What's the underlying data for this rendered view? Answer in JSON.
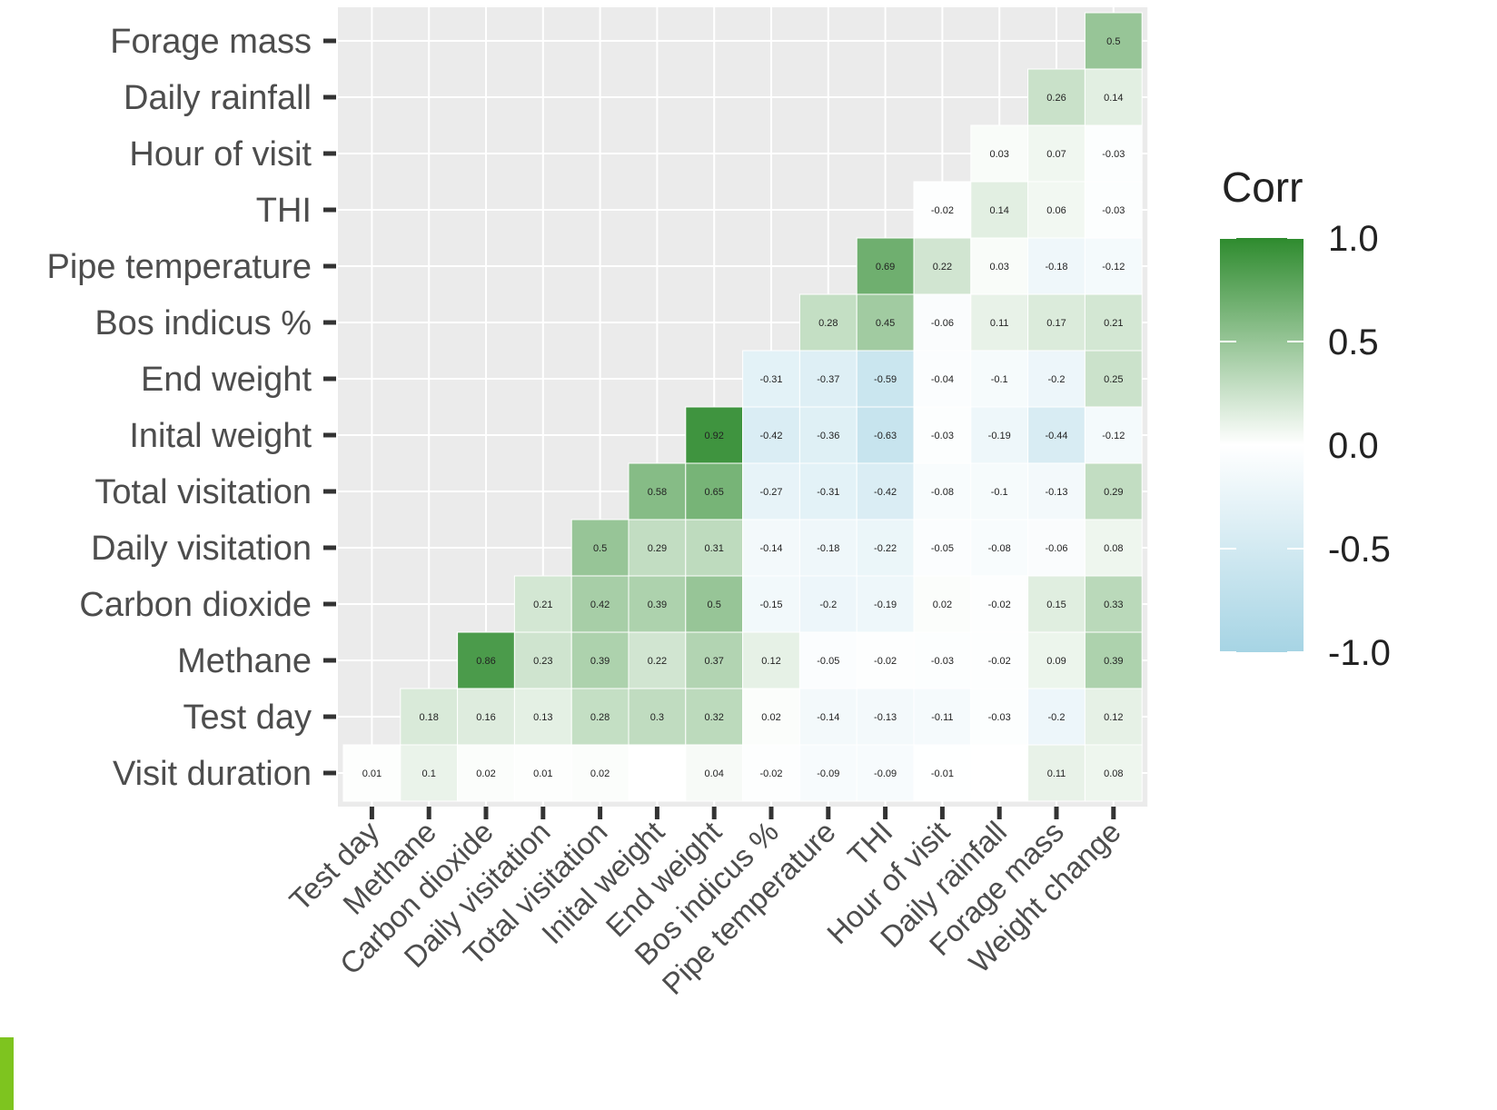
{
  "chart_data": {
    "type": "heatmap",
    "title": "",
    "xlabel": "",
    "ylabel": "",
    "x_categories": [
      "Test day",
      "Methane",
      "Carbon dioxide",
      "Daily visitation",
      "Total visitation",
      "Inital weight",
      "End weight",
      "Bos indicus %",
      "Pipe temperature",
      "THI",
      "Hour of visit",
      "Daily rainfall",
      "Forage mass",
      "Weight change"
    ],
    "y_categories": [
      "Forage mass",
      "Daily rainfall",
      "Hour of visit",
      "THI",
      "Pipe temperature",
      "Bos indicus %",
      "End weight",
      "Inital weight",
      "Total visitation",
      "Daily visitation",
      "Carbon dioxide",
      "Methane",
      "Test day",
      "Visit duration"
    ],
    "values": [
      [
        null,
        null,
        null,
        null,
        null,
        null,
        null,
        null,
        null,
        null,
        null,
        null,
        null,
        0.5
      ],
      [
        null,
        null,
        null,
        null,
        null,
        null,
        null,
        null,
        null,
        null,
        null,
        null,
        0.26,
        0.14
      ],
      [
        null,
        null,
        null,
        null,
        null,
        null,
        null,
        null,
        null,
        null,
        null,
        0.03,
        0.07,
        -0.03
      ],
      [
        null,
        null,
        null,
        null,
        null,
        null,
        null,
        null,
        null,
        null,
        -0.02,
        0.14,
        0.06,
        -0.03
      ],
      [
        null,
        null,
        null,
        null,
        null,
        null,
        null,
        null,
        null,
        0.69,
        0.22,
        0.03,
        -0.18,
        -0.12
      ],
      [
        null,
        null,
        null,
        null,
        null,
        null,
        null,
        null,
        0.28,
        0.45,
        -0.06,
        0.11,
        0.17,
        0.21
      ],
      [
        null,
        null,
        null,
        null,
        null,
        null,
        null,
        -0.31,
        -0.37,
        -0.59,
        -0.04,
        -0.1,
        -0.2,
        0.25
      ],
      [
        null,
        null,
        null,
        null,
        null,
        null,
        0.92,
        -0.42,
        -0.36,
        -0.63,
        -0.03,
        -0.19,
        -0.44,
        -0.12
      ],
      [
        null,
        null,
        null,
        null,
        null,
        0.58,
        0.65,
        -0.27,
        -0.31,
        -0.42,
        -0.08,
        -0.1,
        -0.13,
        0.29
      ],
      [
        null,
        null,
        null,
        null,
        0.5,
        0.29,
        0.31,
        -0.14,
        -0.18,
        -0.22,
        -0.05,
        -0.08,
        -0.06,
        0.08
      ],
      [
        null,
        null,
        null,
        0.21,
        0.42,
        0.39,
        0.5,
        -0.15,
        -0.2,
        -0.19,
        0.02,
        -0.02,
        0.15,
        0.33
      ],
      [
        null,
        null,
        0.86,
        0.23,
        0.39,
        0.22,
        0.37,
        0.12,
        -0.05,
        -0.02,
        -0.03,
        -0.02,
        0.09,
        0.39
      ],
      [
        null,
        0.18,
        0.16,
        0.13,
        0.28,
        0.3,
        0.32,
        0.02,
        -0.14,
        -0.13,
        -0.11,
        -0.03,
        -0.2,
        0.12
      ],
      [
        0.01,
        0.1,
        0.02,
        0.01,
        0.02,
        0.0,
        0.04,
        -0.02,
        -0.09,
        -0.09,
        -0.01,
        0.0,
        0.11,
        0.08
      ]
    ],
    "hidden_labels": [
      [
        13,
        5
      ],
      [
        13,
        11
      ]
    ],
    "value_range": [
      -1,
      1
    ],
    "grid": true,
    "legend": {
      "title": "Corr",
      "position": "right",
      "ticks": [
        "1.0",
        "0.5",
        "0.0",
        "-0.5",
        "-1.0"
      ],
      "colors": {
        "high": "#2e8b2e",
        "mid": "#ffffff",
        "low": "#a6d4e4"
      }
    },
    "panel_background": "#ebebeb",
    "gridline_color": "#ffffff"
  }
}
